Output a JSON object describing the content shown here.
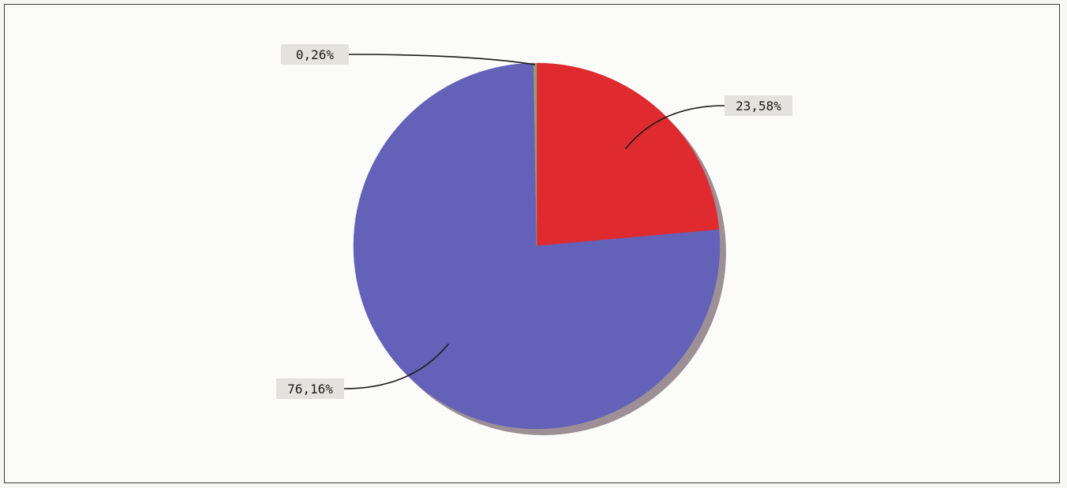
{
  "chart_data": {
    "type": "pie",
    "title": "",
    "slices": [
      {
        "label": "23,58%",
        "value": 23.58,
        "color": "#df2b2f"
      },
      {
        "label": "76,16%",
        "value": 76.16,
        "color": "#6362b8"
      },
      {
        "label": "0,26%",
        "value": 0.26,
        "color": "#9a9a72"
      }
    ],
    "start_angle_deg": 0,
    "direction": "clockwise",
    "shadow_color": "#9c8f96",
    "label_background": "#e4e2dc",
    "leader_color": "#1a1a1a"
  }
}
